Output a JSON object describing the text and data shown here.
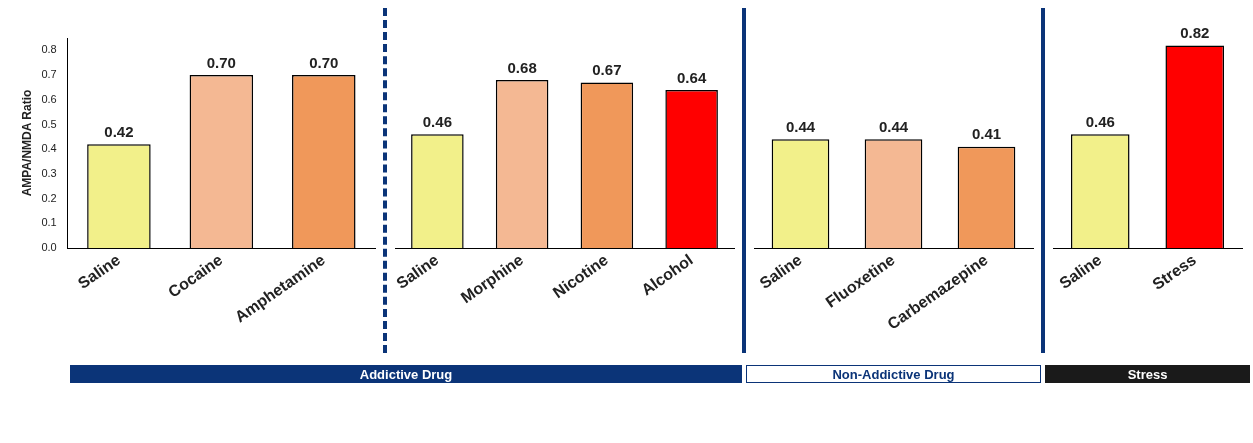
{
  "chart_data": [
    {
      "type": "bar",
      "ylabel": "AMPA/NMDA Ratio",
      "categories": [
        "Saline",
        "Cocaine",
        "Amphetamine"
      ],
      "values": [
        0.42,
        0.7,
        0.7
      ],
      "colors": [
        "#f2f08a",
        "#f4b893",
        "#f0985a"
      ],
      "value_labels": [
        "0.42",
        "0.70",
        "0.70"
      ],
      "ylim": [
        0,
        0.85
      ],
      "yticks": [
        {
          "value": 0,
          "label": "0.0"
        },
        0.1,
        0.2,
        0.3,
        0.4,
        0.5,
        0.6,
        0.7,
        0.8
      ],
      "annotations": [
        "Addictive Drug"
      ]
    },
    {
      "type": "bar",
      "categories": [
        "Saline",
        "Morphine",
        "Nicotine",
        "Alcohol"
      ],
      "values": [
        0.46,
        0.68,
        0.67,
        0.64
      ],
      "colors": [
        "#f2f08a",
        "#f4b893",
        "#f0985a",
        "#ff0000"
      ],
      "value_labels": [
        "0.46",
        "0.68",
        "0.67",
        "0.64"
      ],
      "tick_labels": "x"
    },
    {
      "type": "bar",
      "categories": [
        "Saline",
        "Fluoxetine",
        "Carbemazepine"
      ],
      "values": [
        0.44,
        0.44,
        0.41
      ],
      "colors": [
        "#f2f08a",
        "#f4b893",
        "#f0985a"
      ],
      "value_labels": [
        "0.44",
        "0.44",
        "0.41"
      ],
      "tick_labels": "x",
      "annotations": [
        "Non-Addictive Drug"
      ]
    },
    {
      "type": "bar",
      "categories": [
        "Saline",
        "Stress"
      ],
      "values": [
        0.46,
        0.82
      ],
      "colors": [
        "#f2f08a",
        "#ff0000"
      ],
      "value_labels": [
        "0.46",
        "0.82"
      ],
      "tick_labels": "x",
      "annotations": [
        "Stress"
      ]
    }
  ]
}
